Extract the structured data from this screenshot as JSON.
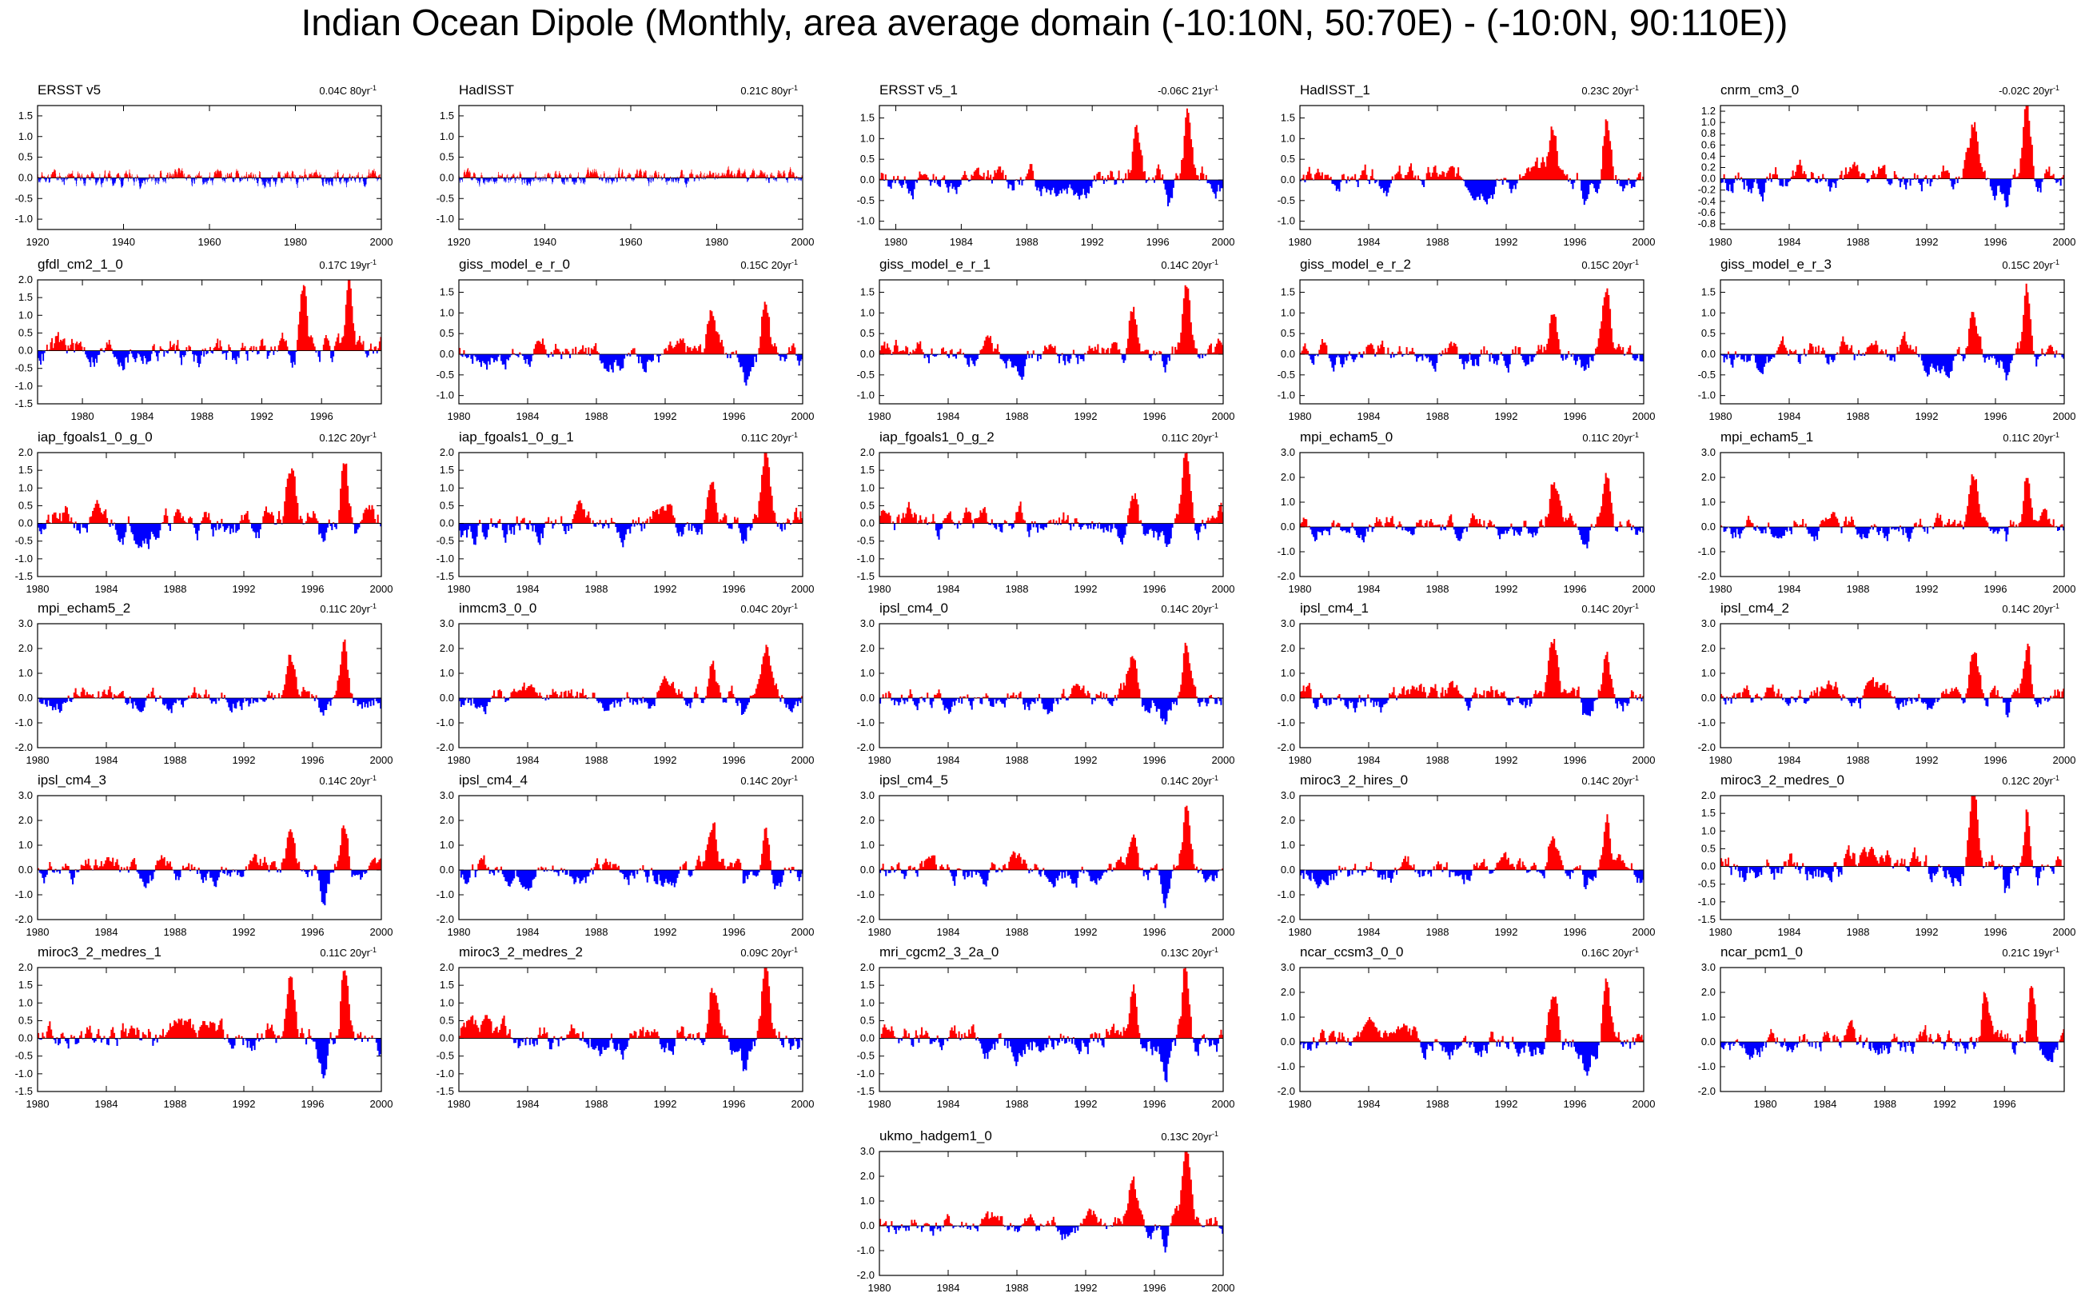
{
  "title": "Indian Ocean Dipole (Monthly, area average domain (-10:10N, 50:70E) - (-10:0N, 90:110E))",
  "colors": {
    "positive": "#ff0000",
    "negative": "#0000ff",
    "axis": "#000000"
  },
  "chart_data": [
    {
      "type": "bar",
      "title": "ERSST v5",
      "stat": "0.04C 80yr",
      "x_range": [
        1920,
        2000
      ],
      "ylim": [
        -1.25,
        1.75
      ],
      "x_ticks": [
        "1920",
        "1940",
        "1960",
        "1980",
        "2000"
      ],
      "y_ticks": [
        "1.5",
        "1.0",
        "0.5",
        "0.0",
        "-0.5",
        "-1.0"
      ],
      "seed": 11,
      "amp": 0.55
    },
    {
      "type": "bar",
      "title": "HadISST",
      "stat": "0.21C 80yr",
      "x_range": [
        1920,
        2000
      ],
      "ylim": [
        -1.25,
        1.75
      ],
      "x_ticks": [
        "1920",
        "1940",
        "1960",
        "1980",
        "2000"
      ],
      "y_ticks": [
        "1.5",
        "1.0",
        "0.5",
        "0.0",
        "-0.5",
        "-1.0"
      ],
      "seed": 12,
      "amp": 0.5
    },
    {
      "type": "bar",
      "title": "ERSST v5_1",
      "stat": "-0.06C 21yr",
      "x_range": [
        1979,
        2000
      ],
      "ylim": [
        -1.2,
        1.8
      ],
      "x_ticks": [
        "1980",
        "1984",
        "1988",
        "1992",
        "1996",
        "2000"
      ],
      "y_ticks": [
        "1.5",
        "1.0",
        "0.5",
        "0.0",
        "-0.5",
        "-1.0"
      ],
      "seed": 13,
      "amp": 1.0
    },
    {
      "type": "bar",
      "title": "HadISST_1",
      "stat": "0.23C 20yr",
      "x_range": [
        1980,
        2000
      ],
      "ylim": [
        -1.2,
        1.8
      ],
      "x_ticks": [
        "1980",
        "1984",
        "1988",
        "1992",
        "1996",
        "2000"
      ],
      "y_ticks": [
        "1.5",
        "1.0",
        "0.5",
        "0.0",
        "-0.5",
        "-1.0"
      ],
      "seed": 14,
      "amp": 0.95
    },
    {
      "type": "bar",
      "title": "cnrm_cm3_0",
      "stat": "-0.02C 20yr",
      "x_range": [
        1980,
        2000
      ],
      "ylim": [
        -0.9,
        1.3
      ],
      "x_ticks": [
        "1980",
        "1984",
        "1988",
        "1992",
        "1996",
        "2000"
      ],
      "y_ticks": [
        "1.2",
        "1.0",
        "0.8",
        "0.6",
        "0.4",
        "0.2",
        "0.0",
        "-0.2",
        "-0.4",
        "-0.6",
        "-0.8"
      ],
      "seed": 15,
      "amp": 0.75
    },
    {
      "type": "bar",
      "title": "gfdl_cm2_1_0",
      "stat": "0.17C 19yr",
      "x_range": [
        1977,
        2000
      ],
      "ylim": [
        -1.5,
        2.0
      ],
      "x_ticks": [
        "1980",
        "1984",
        "1988",
        "1992",
        "1996"
      ],
      "y_ticks": [
        "2.0",
        "1.5",
        "1.0",
        "0.5",
        "0.0",
        "-0.5",
        "-1.0",
        "-1.5"
      ],
      "seed": 16,
      "amp": 1.3
    },
    {
      "type": "bar",
      "title": "giss_model_e_r_0",
      "stat": "0.15C 20yr",
      "x_range": [
        1980,
        2000
      ],
      "ylim": [
        -1.2,
        1.8
      ],
      "x_ticks": [
        "1980",
        "1984",
        "1988",
        "1992",
        "1996",
        "2000"
      ],
      "y_ticks": [
        "1.5",
        "1.0",
        "0.5",
        "0.0",
        "-0.5",
        "-1.0"
      ],
      "seed": 17,
      "amp": 0.95
    },
    {
      "type": "bar",
      "title": "giss_model_e_r_1",
      "stat": "0.14C 20yr",
      "x_range": [
        1980,
        2000
      ],
      "ylim": [
        -1.2,
        1.8
      ],
      "x_ticks": [
        "1980",
        "1984",
        "1988",
        "1992",
        "1996",
        "2000"
      ],
      "y_ticks": [
        "1.5",
        "1.0",
        "0.5",
        "0.0",
        "-0.5",
        "-1.0"
      ],
      "seed": 18,
      "amp": 0.95
    },
    {
      "type": "bar",
      "title": "giss_model_e_r_2",
      "stat": "0.15C 20yr",
      "x_range": [
        1980,
        2000
      ],
      "ylim": [
        -1.2,
        1.8
      ],
      "x_ticks": [
        "1980",
        "1984",
        "1988",
        "1992",
        "1996",
        "2000"
      ],
      "y_ticks": [
        "1.5",
        "1.0",
        "0.5",
        "0.0",
        "-0.5",
        "-1.0"
      ],
      "seed": 19,
      "amp": 0.95
    },
    {
      "type": "bar",
      "title": "giss_model_e_r_3",
      "stat": "0.15C 20yr",
      "x_range": [
        1980,
        2000
      ],
      "ylim": [
        -1.2,
        1.8
      ],
      "x_ticks": [
        "1980",
        "1984",
        "1988",
        "1992",
        "1996",
        "2000"
      ],
      "y_ticks": [
        "1.5",
        "1.0",
        "0.5",
        "0.0",
        "-0.5",
        "-1.0"
      ],
      "seed": 20,
      "amp": 0.95
    },
    {
      "type": "bar",
      "title": "iap_fgoals1_0_g_0",
      "stat": "0.12C 20yr",
      "x_range": [
        1980,
        2000
      ],
      "ylim": [
        -1.5,
        2.0
      ],
      "x_ticks": [
        "1980",
        "1984",
        "1988",
        "1992",
        "1996",
        "2000"
      ],
      "y_ticks": [
        "2.0",
        "1.5",
        "1.0",
        "0.5",
        "0.0",
        "-0.5",
        "-1.0",
        "-1.5"
      ],
      "seed": 21,
      "amp": 1.3
    },
    {
      "type": "bar",
      "title": "iap_fgoals1_0_g_1",
      "stat": "0.11C 20yr",
      "x_range": [
        1980,
        2000
      ],
      "ylim": [
        -1.5,
        2.0
      ],
      "x_ticks": [
        "1980",
        "1984",
        "1988",
        "1992",
        "1996",
        "2000"
      ],
      "y_ticks": [
        "2.0",
        "1.5",
        "1.0",
        "0.5",
        "0.0",
        "-0.5",
        "-1.0",
        "-1.5"
      ],
      "seed": 22,
      "amp": 1.3
    },
    {
      "type": "bar",
      "title": "iap_fgoals1_0_g_2",
      "stat": "0.11C 20yr",
      "x_range": [
        1980,
        2000
      ],
      "ylim": [
        -1.5,
        2.0
      ],
      "x_ticks": [
        "1980",
        "1984",
        "1988",
        "1992",
        "1996",
        "2000"
      ],
      "y_ticks": [
        "2.0",
        "1.5",
        "1.0",
        "0.5",
        "0.0",
        "-0.5",
        "-1.0",
        "-1.5"
      ],
      "seed": 23,
      "amp": 1.3
    },
    {
      "type": "bar",
      "title": "mpi_echam5_0",
      "stat": "0.11C 20yr",
      "x_range": [
        1980,
        2000
      ],
      "ylim": [
        -2.0,
        3.0
      ],
      "x_ticks": [
        "1980",
        "1984",
        "1988",
        "1992",
        "1996",
        "2000"
      ],
      "y_ticks": [
        "3.0",
        "2.0",
        "1.0",
        "0.0",
        "-1.0",
        "-2.0"
      ],
      "seed": 24,
      "amp": 1.4
    },
    {
      "type": "bar",
      "title": "mpi_echam5_1",
      "stat": "0.11C 20yr",
      "x_range": [
        1980,
        2000
      ],
      "ylim": [
        -2.0,
        3.0
      ],
      "x_ticks": [
        "1980",
        "1984",
        "1988",
        "1992",
        "1996",
        "2000"
      ],
      "y_ticks": [
        "3.0",
        "2.0",
        "1.0",
        "0.0",
        "-1.0",
        "-2.0"
      ],
      "seed": 25,
      "amp": 1.4
    },
    {
      "type": "bar",
      "title": "mpi_echam5_2",
      "stat": "0.11C 20yr",
      "x_range": [
        1980,
        2000
      ],
      "ylim": [
        -2.0,
        3.0
      ],
      "x_ticks": [
        "1980",
        "1984",
        "1988",
        "1992",
        "1996",
        "2000"
      ],
      "y_ticks": [
        "3.0",
        "2.0",
        "1.0",
        "0.0",
        "-1.0",
        "-2.0"
      ],
      "seed": 26,
      "amp": 1.4
    },
    {
      "type": "bar",
      "title": "inmcm3_0_0",
      "stat": "0.04C 20yr",
      "x_range": [
        1980,
        2000
      ],
      "ylim": [
        -2.0,
        3.0
      ],
      "x_ticks": [
        "1980",
        "1984",
        "1988",
        "1992",
        "1996",
        "2000"
      ],
      "y_ticks": [
        "3.0",
        "2.0",
        "1.0",
        "0.0",
        "-1.0",
        "-2.0"
      ],
      "seed": 27,
      "amp": 1.4
    },
    {
      "type": "bar",
      "title": "ipsl_cm4_0",
      "stat": "0.14C 20yr",
      "x_range": [
        1980,
        2000
      ],
      "ylim": [
        -2.0,
        3.0
      ],
      "x_ticks": [
        "1980",
        "1984",
        "1988",
        "1992",
        "1996",
        "2000"
      ],
      "y_ticks": [
        "3.0",
        "2.0",
        "1.0",
        "0.0",
        "-1.0",
        "-2.0"
      ],
      "seed": 28,
      "amp": 1.5
    },
    {
      "type": "bar",
      "title": "ipsl_cm4_1",
      "stat": "0.14C 20yr",
      "x_range": [
        1980,
        2000
      ],
      "ylim": [
        -2.0,
        3.0
      ],
      "x_ticks": [
        "1980",
        "1984",
        "1988",
        "1992",
        "1996",
        "2000"
      ],
      "y_ticks": [
        "3.0",
        "2.0",
        "1.0",
        "0.0",
        "-1.0",
        "-2.0"
      ],
      "seed": 29,
      "amp": 1.5
    },
    {
      "type": "bar",
      "title": "ipsl_cm4_2",
      "stat": "0.14C 20yr",
      "x_range": [
        1980,
        2000
      ],
      "ylim": [
        -2.0,
        3.0
      ],
      "x_ticks": [
        "1980",
        "1984",
        "1988",
        "1992",
        "1996",
        "2000"
      ],
      "y_ticks": [
        "3.0",
        "2.0",
        "1.0",
        "0.0",
        "-1.0",
        "-2.0"
      ],
      "seed": 30,
      "amp": 1.5
    },
    {
      "type": "bar",
      "title": "ipsl_cm4_3",
      "stat": "0.14C 20yr",
      "x_range": [
        1980,
        2000
      ],
      "ylim": [
        -2.0,
        3.0
      ],
      "x_ticks": [
        "1980",
        "1984",
        "1988",
        "1992",
        "1996",
        "2000"
      ],
      "y_ticks": [
        "3.0",
        "2.0",
        "1.0",
        "0.0",
        "-1.0",
        "-2.0"
      ],
      "seed": 31,
      "amp": 1.5
    },
    {
      "type": "bar",
      "title": "ipsl_cm4_4",
      "stat": "0.14C 20yr",
      "x_range": [
        1980,
        2000
      ],
      "ylim": [
        -2.0,
        3.0
      ],
      "x_ticks": [
        "1980",
        "1984",
        "1988",
        "1992",
        "1996",
        "2000"
      ],
      "y_ticks": [
        "3.0",
        "2.0",
        "1.0",
        "0.0",
        "-1.0",
        "-2.0"
      ],
      "seed": 32,
      "amp": 1.5
    },
    {
      "type": "bar",
      "title": "ipsl_cm4_5",
      "stat": "0.14C 20yr",
      "x_range": [
        1980,
        2000
      ],
      "ylim": [
        -2.0,
        3.0
      ],
      "x_ticks": [
        "1980",
        "1984",
        "1988",
        "1992",
        "1996",
        "2000"
      ],
      "y_ticks": [
        "3.0",
        "2.0",
        "1.0",
        "0.0",
        "-1.0",
        "-2.0"
      ],
      "seed": 33,
      "amp": 1.5
    },
    {
      "type": "bar",
      "title": "miroc3_2_hires_0",
      "stat": "0.14C 20yr",
      "x_range": [
        1980,
        2000
      ],
      "ylim": [
        -2.0,
        3.0
      ],
      "x_ticks": [
        "1980",
        "1984",
        "1988",
        "1992",
        "1996",
        "2000"
      ],
      "y_ticks": [
        "3.0",
        "2.0",
        "1.0",
        "0.0",
        "-1.0",
        "-2.0"
      ],
      "seed": 34,
      "amp": 1.5
    },
    {
      "type": "bar",
      "title": "miroc3_2_medres_0",
      "stat": "0.12C 20yr",
      "x_range": [
        1980,
        2000
      ],
      "ylim": [
        -1.5,
        2.0
      ],
      "x_ticks": [
        "1980",
        "1984",
        "1988",
        "1992",
        "1996",
        "2000"
      ],
      "y_ticks": [
        "2.0",
        "1.5",
        "1.0",
        "0.5",
        "0.0",
        "-0.5",
        "-1.0",
        "-1.5"
      ],
      "seed": 35,
      "amp": 1.3
    },
    {
      "type": "bar",
      "title": "miroc3_2_medres_1",
      "stat": "0.11C 20yr",
      "x_range": [
        1980,
        2000
      ],
      "ylim": [
        -1.5,
        2.0
      ],
      "x_ticks": [
        "1980",
        "1984",
        "1988",
        "1992",
        "1996",
        "2000"
      ],
      "y_ticks": [
        "2.0",
        "1.5",
        "1.0",
        "0.5",
        "0.0",
        "-0.5",
        "-1.0",
        "-1.5"
      ],
      "seed": 36,
      "amp": 1.3
    },
    {
      "type": "bar",
      "title": "miroc3_2_medres_2",
      "stat": "0.09C 20yr",
      "x_range": [
        1980,
        2000
      ],
      "ylim": [
        -1.5,
        2.0
      ],
      "x_ticks": [
        "1980",
        "1984",
        "1988",
        "1992",
        "1996",
        "2000"
      ],
      "y_ticks": [
        "2.0",
        "1.5",
        "1.0",
        "0.5",
        "0.0",
        "-0.5",
        "-1.0",
        "-1.5"
      ],
      "seed": 37,
      "amp": 1.3
    },
    {
      "type": "bar",
      "title": "mri_cgcm2_3_2a_0",
      "stat": "0.13C 20yr",
      "x_range": [
        1980,
        2000
      ],
      "ylim": [
        -1.5,
        2.0
      ],
      "x_ticks": [
        "1980",
        "1984",
        "1988",
        "1992",
        "1996",
        "2000"
      ],
      "y_ticks": [
        "2.0",
        "1.5",
        "1.0",
        "0.5",
        "0.0",
        "-0.5",
        "-1.0",
        "-1.5"
      ],
      "seed": 38,
      "amp": 1.3
    },
    {
      "type": "bar",
      "title": "ncar_ccsm3_0_0",
      "stat": "0.16C 20yr",
      "x_range": [
        1980,
        2000
      ],
      "ylim": [
        -2.0,
        3.0
      ],
      "x_ticks": [
        "1980",
        "1984",
        "1988",
        "1992",
        "1996",
        "2000"
      ],
      "y_ticks": [
        "3.0",
        "2.0",
        "1.0",
        "0.0",
        "-1.0",
        "-2.0"
      ],
      "seed": 39,
      "amp": 1.5
    },
    {
      "type": "bar",
      "title": "ncar_pcm1_0",
      "stat": "0.21C 19yr",
      "x_range": [
        1977,
        2000
      ],
      "ylim": [
        -2.0,
        3.0
      ],
      "x_ticks": [
        "1980",
        "1984",
        "1988",
        "1992",
        "1996"
      ],
      "y_ticks": [
        "3.0",
        "2.0",
        "1.0",
        "0.0",
        "-1.0",
        "-2.0"
      ],
      "seed": 40,
      "amp": 1.5
    },
    {
      "type": "bar",
      "title": "ukmo_hadgem1_0",
      "stat": "0.13C 20yr",
      "x_range": [
        1980,
        2000
      ],
      "ylim": [
        -2.0,
        3.0
      ],
      "x_ticks": [
        "1980",
        "1984",
        "1988",
        "1992",
        "1996",
        "2000"
      ],
      "y_ticks": [
        "3.0",
        "2.0",
        "1.0",
        "0.0",
        "-1.0",
        "-2.0"
      ],
      "seed": 41,
      "amp": 1.5
    }
  ]
}
